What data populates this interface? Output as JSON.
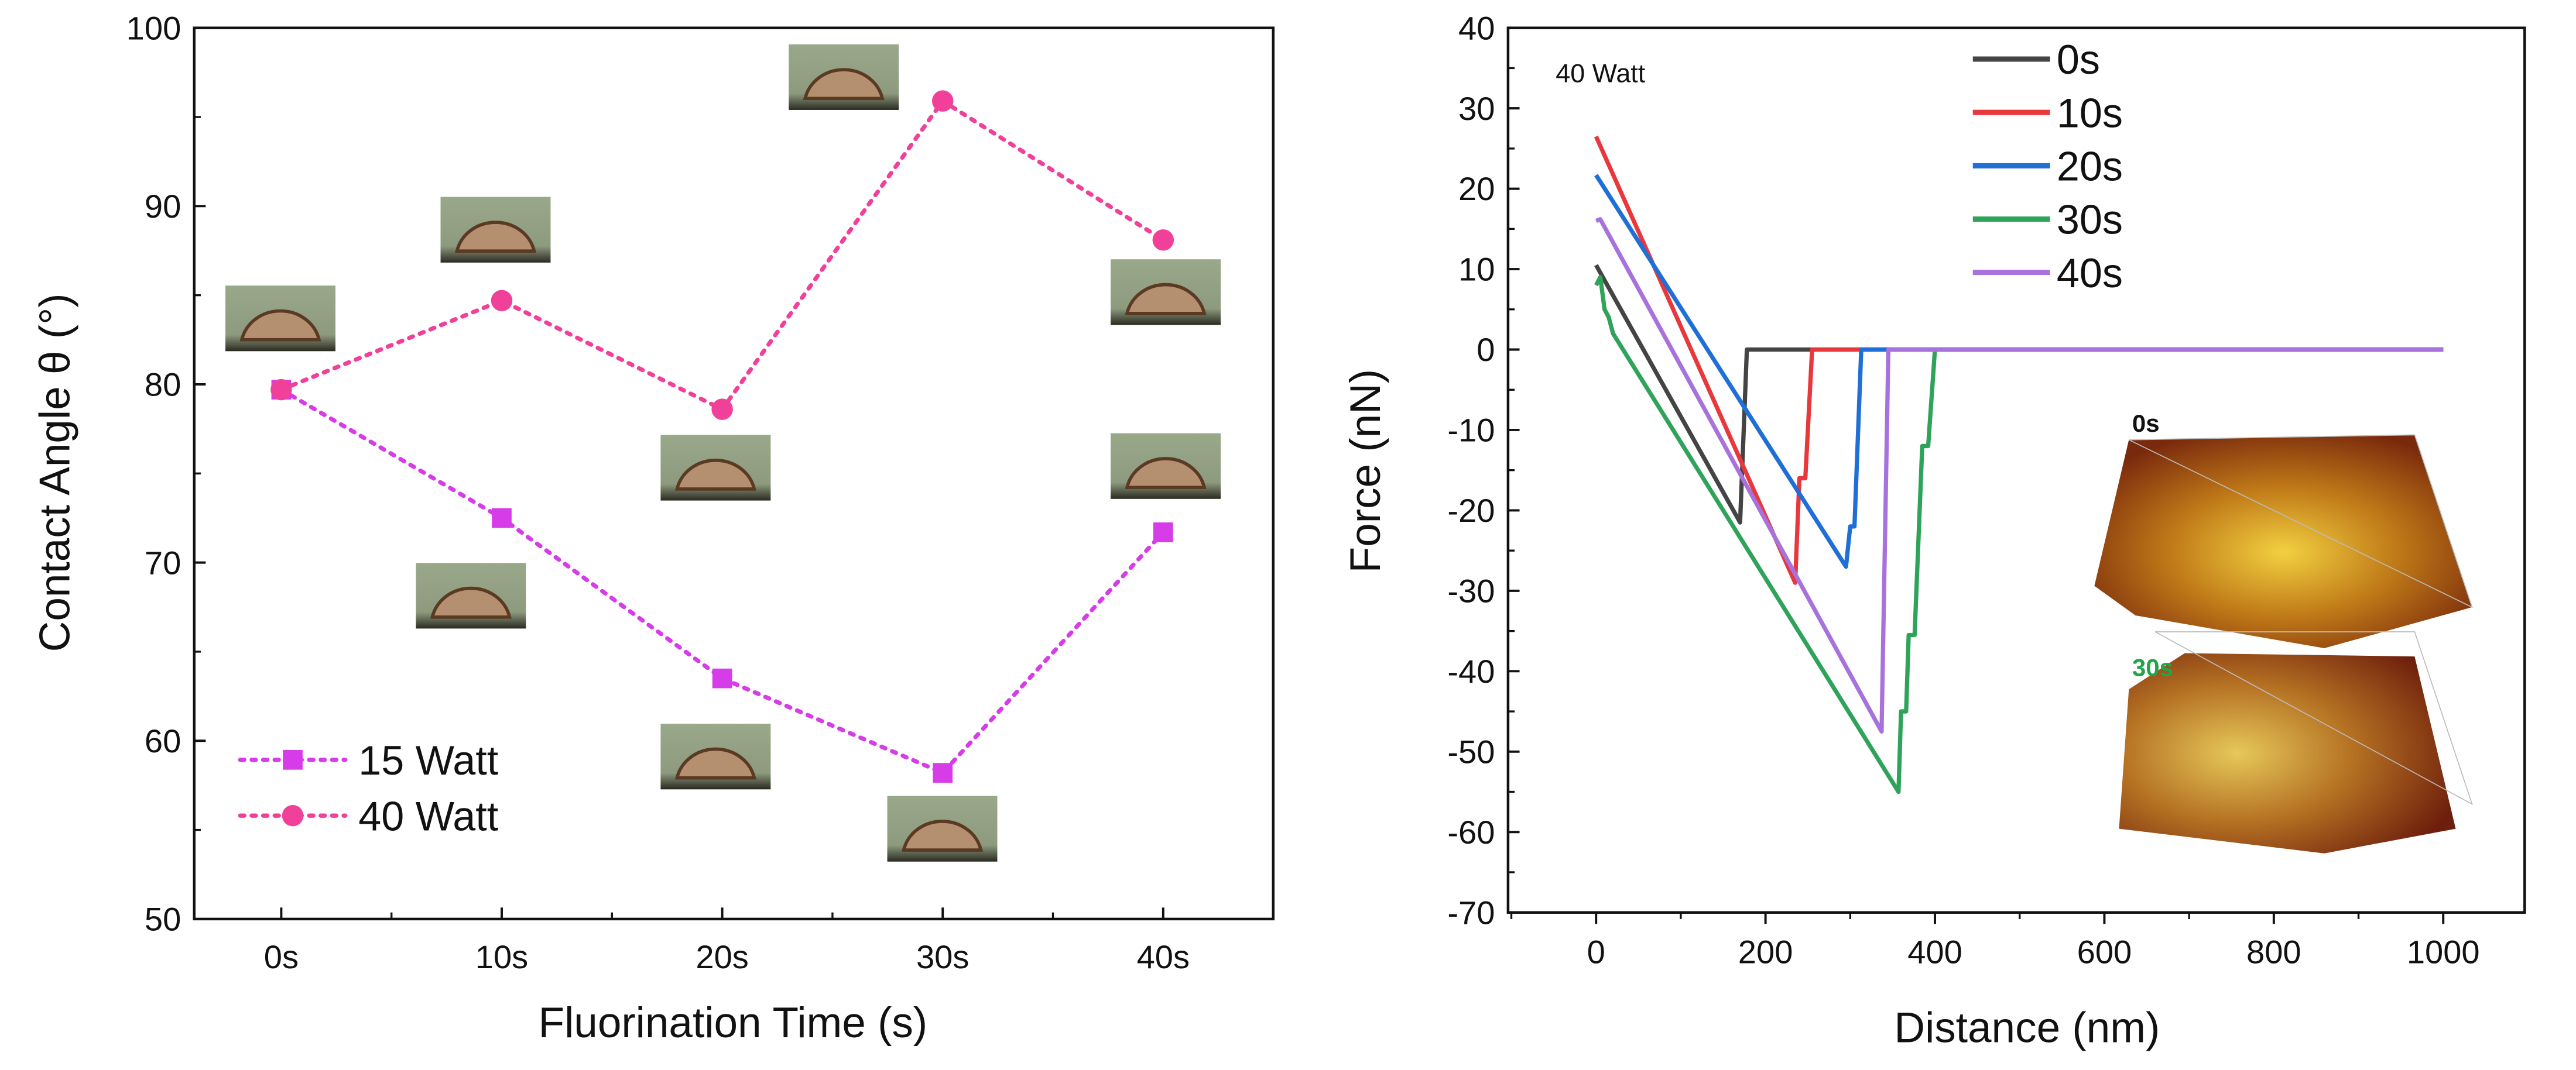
{
  "chart_data": [
    {
      "type": "line",
      "xlabel": "Fluorination Time (s)",
      "ylabel": "Contact Angle θ (°)",
      "categories": [
        "0s",
        "10s",
        "20s",
        "30s",
        "40s"
      ],
      "ylim": [
        50,
        100
      ],
      "yticks": [
        "50",
        "60",
        "70",
        "80",
        "90",
        "100"
      ],
      "grid": false,
      "legend": "bottom-left",
      "series": [
        {
          "name": "15 Watt",
          "marker": "square",
          "color": "#d63ce8",
          "values": [
            79.7,
            72.5,
            63.5,
            58.2,
            71.7
          ]
        },
        {
          "name": "40 Watt",
          "marker": "circle",
          "color": "#f0409a",
          "values": [
            79.7,
            84.7,
            78.6,
            95.9,
            88.1
          ]
        }
      ],
      "annotations": "droplet photo insets at each point"
    },
    {
      "type": "line",
      "annotation": "40 Watt",
      "xlabel": "Distance (nm)",
      "ylabel": "Force (nN)",
      "xlim": [
        -100,
        1100
      ],
      "ylim": [
        -70,
        40
      ],
      "xticks": [
        "0",
        "200",
        "400",
        "600",
        "800",
        "1000"
      ],
      "yticks": [
        "40",
        "30",
        "20",
        "10",
        "0",
        "-10",
        "-20",
        "-30",
        "-40",
        "-50",
        "-60",
        "-70"
      ],
      "grid": false,
      "legend": "top-center",
      "series": [
        {
          "name": "0s",
          "color": "#444444",
          "x": [
            0,
            170,
            178,
            1000
          ],
          "y": [
            10.5,
            -21.5,
            0,
            0
          ]
        },
        {
          "name": "10s",
          "color": "#e8383c",
          "x": [
            0,
            235,
            240,
            247,
            255,
            1000
          ],
          "y": [
            26.5,
            -29,
            -16,
            -16,
            0,
            0
          ]
        },
        {
          "name": "20s",
          "color": "#1f6fd6",
          "x": [
            0,
            295,
            300,
            305,
            313,
            1000
          ],
          "y": [
            21.7,
            -27,
            -22,
            -22,
            0,
            0
          ]
        },
        {
          "name": "30s",
          "color": "#2fa35a",
          "x": [
            0,
            5,
            10,
            15,
            20,
            357,
            360,
            366,
            369,
            376,
            385,
            392,
            400,
            1000
          ],
          "y": [
            8,
            9,
            5,
            4,
            2,
            -55,
            -45,
            -45,
            -35.5,
            -35.5,
            -12,
            -12,
            0,
            0
          ]
        },
        {
          "name": "40s",
          "color": "#a872dc",
          "x": [
            0,
            5,
            337,
            345,
            1000
          ],
          "y": [
            16,
            16.2,
            -47.5,
            0,
            0
          ]
        }
      ],
      "insets": [
        {
          "label": "0s",
          "label_color": "#111111"
        },
        {
          "label": "30s",
          "label_color": "#22a34a"
        }
      ]
    }
  ]
}
